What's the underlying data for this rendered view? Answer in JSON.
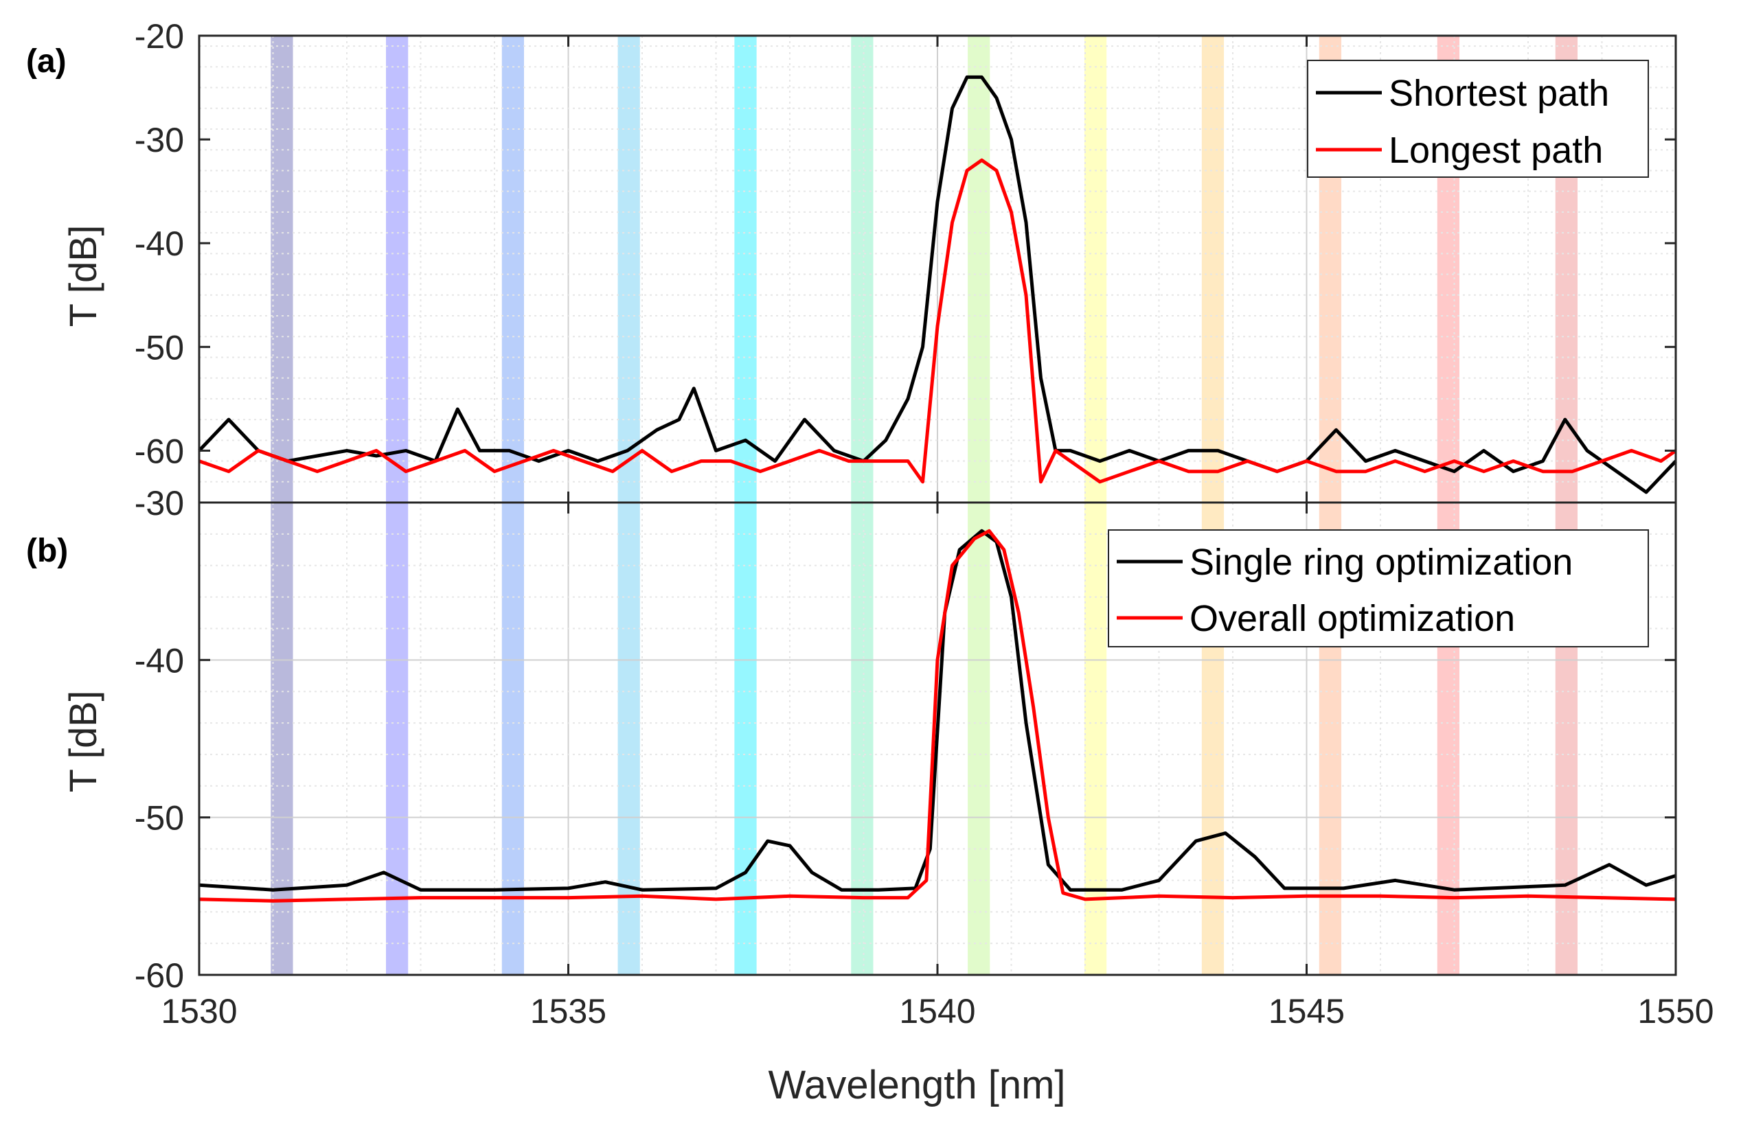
{
  "chart_data": [
    {
      "type": "line",
      "panel_label": "(a)",
      "xlabel": "",
      "ylabel": "T [dB]",
      "xlim": [
        1530,
        1550
      ],
      "ylim": [
        -65,
        -20
      ],
      "yticks": [
        -60,
        -50,
        -40,
        -30,
        -20
      ],
      "ytick_labels": [
        "-60",
        "-50",
        "-40",
        "-30",
        "-20"
      ],
      "grid": true,
      "legend_position": "top-right",
      "bands": [
        {
          "center": 1531.12,
          "color": "#8080c0"
        },
        {
          "center": 1532.68,
          "color": "#8c8cff"
        },
        {
          "center": 1534.25,
          "color": "#80a8f8"
        },
        {
          "center": 1535.82,
          "color": "#80d4f4"
        },
        {
          "center": 1537.4,
          "color": "#40f0ff"
        },
        {
          "center": 1538.98,
          "color": "#90f0c8"
        },
        {
          "center": 1540.56,
          "color": "#c8f8a0"
        },
        {
          "center": 1542.14,
          "color": "#ffff90"
        },
        {
          "center": 1543.73,
          "color": "#ffd890"
        },
        {
          "center": 1545.32,
          "color": "#ffbc98"
        },
        {
          "center": 1546.92,
          "color": "#ff9c9c"
        },
        {
          "center": 1548.52,
          "color": "#f09c9c"
        }
      ],
      "series": [
        {
          "name": "Shortest path",
          "color": "#000000",
          "x": [
            1530.0,
            1530.4,
            1530.8,
            1531.2,
            1531.6,
            1532.0,
            1532.4,
            1532.8,
            1533.2,
            1533.5,
            1533.8,
            1534.2,
            1534.6,
            1535.0,
            1535.4,
            1535.8,
            1536.2,
            1536.5,
            1536.7,
            1537.0,
            1537.4,
            1537.8,
            1538.2,
            1538.6,
            1539.0,
            1539.3,
            1539.6,
            1539.8,
            1540.0,
            1540.2,
            1540.4,
            1540.6,
            1540.8,
            1541.0,
            1541.2,
            1541.4,
            1541.6,
            1541.8,
            1542.2,
            1542.6,
            1543.0,
            1543.4,
            1543.8,
            1544.2,
            1544.6,
            1545.0,
            1545.4,
            1545.8,
            1546.2,
            1546.6,
            1547.0,
            1547.4,
            1547.8,
            1548.2,
            1548.5,
            1548.8,
            1549.2,
            1549.6,
            1550.0
          ],
          "values": [
            -60,
            -57,
            -60,
            -61,
            -60.5,
            -60,
            -60.5,
            -60,
            -61,
            -56,
            -60,
            -60,
            -61,
            -60,
            -61,
            -60,
            -58,
            -57,
            -54,
            -60,
            -59,
            -61,
            -57,
            -60,
            -61,
            -59,
            -55,
            -50,
            -36,
            -27,
            -24,
            -24,
            -26,
            -30,
            -38,
            -53,
            -60,
            -60,
            -61,
            -60,
            -61,
            -60,
            -60,
            -61,
            -62,
            -61,
            -58,
            -61,
            -60,
            -61,
            -62,
            -60,
            -62,
            -61,
            -57,
            -60,
            -62,
            -64,
            -61
          ]
        },
        {
          "name": "Longest path",
          "color": "#ff0000",
          "x": [
            1530.0,
            1530.4,
            1530.8,
            1531.2,
            1531.6,
            1532.0,
            1532.4,
            1532.8,
            1533.2,
            1533.6,
            1534.0,
            1534.4,
            1534.8,
            1535.2,
            1535.6,
            1536.0,
            1536.4,
            1536.8,
            1537.2,
            1537.6,
            1538.0,
            1538.4,
            1538.8,
            1539.2,
            1539.6,
            1539.8,
            1540.0,
            1540.2,
            1540.4,
            1540.6,
            1540.8,
            1541.0,
            1541.2,
            1541.4,
            1541.6,
            1541.8,
            1542.2,
            1542.6,
            1543.0,
            1543.4,
            1543.8,
            1544.2,
            1544.6,
            1545.0,
            1545.4,
            1545.8,
            1546.2,
            1546.6,
            1547.0,
            1547.4,
            1547.8,
            1548.2,
            1548.6,
            1549.0,
            1549.4,
            1549.8,
            1550.0
          ],
          "values": [
            -61,
            -62,
            -60,
            -61,
            -62,
            -61,
            -60,
            -62,
            -61,
            -60,
            -62,
            -61,
            -60,
            -61,
            -62,
            -60,
            -62,
            -61,
            -61,
            -62,
            -61,
            -60,
            -61,
            -61,
            -61,
            -63,
            -48,
            -38,
            -33,
            -32,
            -33,
            -37,
            -45,
            -63,
            -60,
            -61,
            -63,
            -62,
            -61,
            -62,
            -62,
            -61,
            -62,
            -61,
            -62,
            -62,
            -61,
            -62,
            -61,
            -62,
            -61,
            -62,
            -62,
            -61,
            -60,
            -61,
            -60
          ]
        }
      ]
    },
    {
      "type": "line",
      "panel_label": "(b)",
      "xlabel": "Wavelength [nm]",
      "ylabel": "T [dB]",
      "xlim": [
        1530,
        1550
      ],
      "ylim": [
        -60,
        -30
      ],
      "yticks": [
        -60,
        -50,
        -40,
        -30
      ],
      "ytick_labels": [
        "-60",
        "-50",
        "-40",
        "-30"
      ],
      "xticks": [
        1530,
        1535,
        1540,
        1545,
        1550
      ],
      "xtick_labels": [
        "1530",
        "1535",
        "1540",
        "1545",
        "1550"
      ],
      "grid": true,
      "legend_position": "top-right",
      "bands": [
        {
          "center": 1531.12,
          "color": "#8080c0"
        },
        {
          "center": 1532.68,
          "color": "#8c8cff"
        },
        {
          "center": 1534.25,
          "color": "#80a8f8"
        },
        {
          "center": 1535.82,
          "color": "#80d4f4"
        },
        {
          "center": 1537.4,
          "color": "#40f0ff"
        },
        {
          "center": 1538.98,
          "color": "#90f0c8"
        },
        {
          "center": 1540.56,
          "color": "#c8f8a0"
        },
        {
          "center": 1542.14,
          "color": "#ffff90"
        },
        {
          "center": 1543.73,
          "color": "#ffd890"
        },
        {
          "center": 1545.32,
          "color": "#ffbc98"
        },
        {
          "center": 1546.92,
          "color": "#ff9c9c"
        },
        {
          "center": 1548.52,
          "color": "#f09c9c"
        }
      ],
      "series": [
        {
          "name": "Single ring optimization",
          "color": "#000000",
          "x": [
            1530.0,
            1531.0,
            1532.0,
            1532.5,
            1533.0,
            1534.0,
            1535.0,
            1535.5,
            1536.0,
            1537.0,
            1537.4,
            1537.7,
            1538.0,
            1538.3,
            1538.7,
            1539.2,
            1539.7,
            1539.9,
            1540.1,
            1540.3,
            1540.6,
            1540.8,
            1541.0,
            1541.2,
            1541.5,
            1541.8,
            1542.5,
            1543.0,
            1543.5,
            1543.9,
            1544.3,
            1544.7,
            1545.5,
            1546.2,
            1547.0,
            1547.5,
            1548.5,
            1549.1,
            1549.6,
            1550.0
          ],
          "values": [
            -54.3,
            -54.6,
            -54.3,
            -53.5,
            -54.6,
            -54.6,
            -54.5,
            -54.1,
            -54.6,
            -54.5,
            -53.5,
            -51.5,
            -51.8,
            -53.5,
            -54.6,
            -54.6,
            -54.5,
            -52,
            -37,
            -33,
            -31.8,
            -32.5,
            -36,
            -44,
            -53,
            -54.6,
            -54.6,
            -54,
            -51.5,
            -51.0,
            -52.5,
            -54.5,
            -54.5,
            -54,
            -54.6,
            -54.5,
            -54.3,
            -53.0,
            -54.3,
            -53.7
          ]
        },
        {
          "name": "Overall optimization",
          "color": "#ff0000",
          "x": [
            1530.0,
            1531.0,
            1532.0,
            1533.0,
            1534.0,
            1535.0,
            1536.0,
            1537.0,
            1538.0,
            1539.0,
            1539.6,
            1539.85,
            1540.0,
            1540.2,
            1540.5,
            1540.7,
            1540.9,
            1541.1,
            1541.3,
            1541.5,
            1541.7,
            1542.0,
            1543.0,
            1544.0,
            1545.0,
            1546.0,
            1547.0,
            1548.0,
            1549.0,
            1550.0
          ],
          "values": [
            -55.2,
            -55.3,
            -55.2,
            -55.1,
            -55.1,
            -55.1,
            -55.0,
            -55.2,
            -55.0,
            -55.1,
            -55.1,
            -54.0,
            -40,
            -34,
            -32.3,
            -31.8,
            -33,
            -37,
            -43,
            -50,
            -54.8,
            -55.2,
            -55.0,
            -55.1,
            -55.0,
            -55.0,
            -55.1,
            -55.0,
            -55.1,
            -55.2
          ]
        }
      ]
    }
  ]
}
